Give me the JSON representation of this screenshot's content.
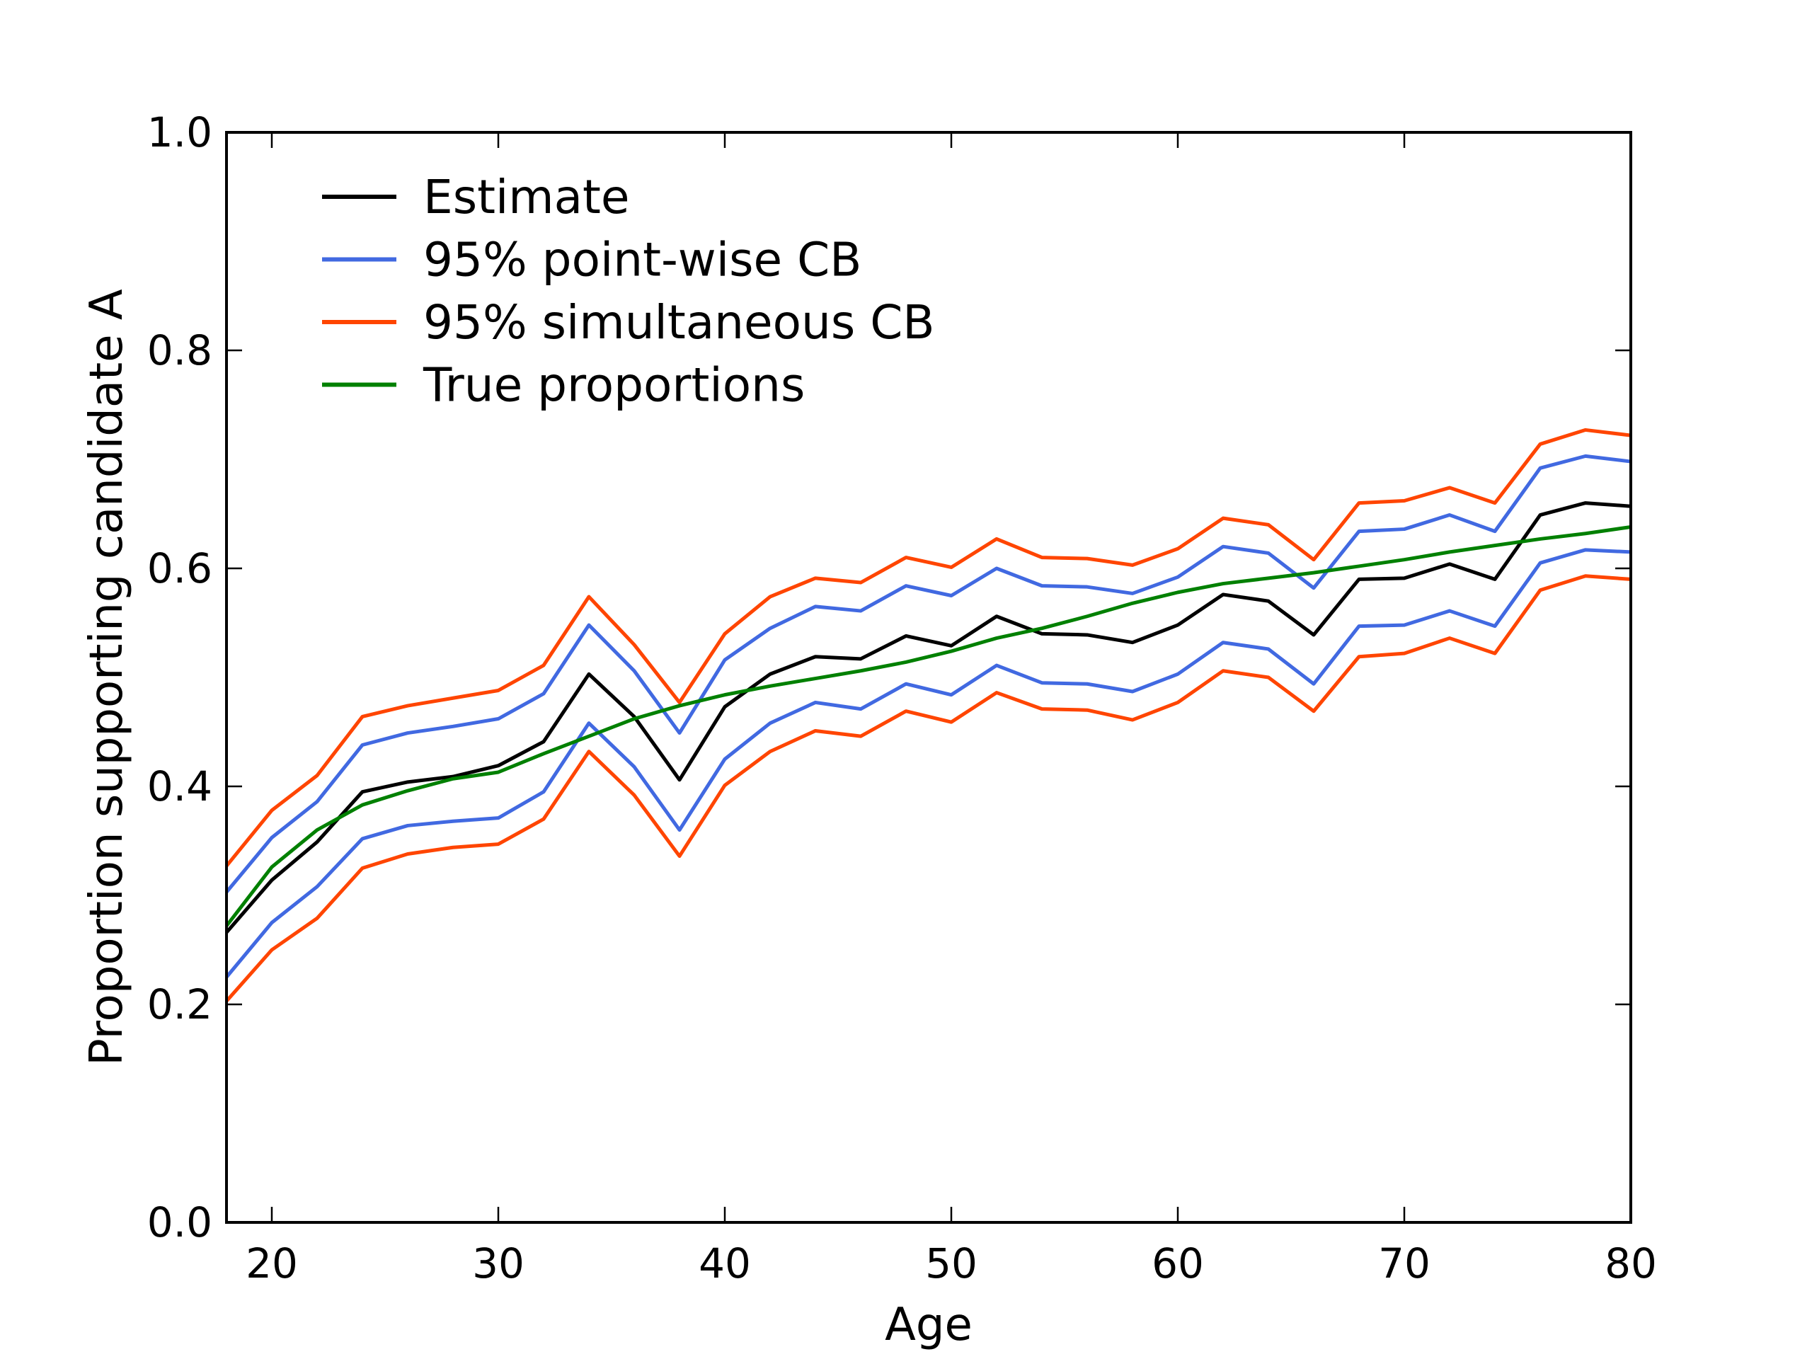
{
  "chart_data": {
    "type": "line",
    "title": "",
    "xlabel": "Age",
    "ylabel": "Proportion supporting candidate A",
    "xlim": [
      18,
      80
    ],
    "ylim": [
      0.0,
      1.0
    ],
    "grid": false,
    "legend_position": "upper left",
    "x": [
      18,
      20,
      22,
      24,
      26,
      28,
      30,
      32,
      34,
      36,
      38,
      40,
      42,
      44,
      46,
      48,
      50,
      52,
      54,
      56,
      58,
      60,
      62,
      64,
      66,
      68,
      70,
      72,
      74,
      76,
      78,
      80
    ],
    "series": [
      {
        "name": "Estimate",
        "color": "#000000",
        "values": [
          0.266,
          0.314,
          0.349,
          0.395,
          0.404,
          0.409,
          0.419,
          0.441,
          0.503,
          0.464,
          0.406,
          0.473,
          0.503,
          0.519,
          0.517,
          0.538,
          0.529,
          0.556,
          0.54,
          0.539,
          0.532,
          0.548,
          0.576,
          0.57,
          0.539,
          0.59,
          0.591,
          0.604,
          0.59,
          0.649,
          0.66,
          0.657
        ]
      },
      {
        "name": "95% point-wise CB upper",
        "color": "#4169E1",
        "values": [
          0.303,
          0.353,
          0.386,
          0.438,
          0.449,
          0.455,
          0.462,
          0.485,
          0.548,
          0.506,
          0.449,
          0.516,
          0.545,
          0.565,
          0.561,
          0.584,
          0.575,
          0.6,
          0.584,
          0.583,
          0.577,
          0.592,
          0.62,
          0.614,
          0.582,
          0.634,
          0.636,
          0.649,
          0.634,
          0.692,
          0.703,
          0.698
        ]
      },
      {
        "name": "95% point-wise CB lower",
        "color": "#4169E1",
        "values": [
          0.225,
          0.275,
          0.308,
          0.352,
          0.364,
          0.368,
          0.371,
          0.395,
          0.458,
          0.418,
          0.36,
          0.425,
          0.458,
          0.477,
          0.471,
          0.494,
          0.484,
          0.511,
          0.495,
          0.494,
          0.487,
          0.503,
          0.532,
          0.526,
          0.494,
          0.547,
          0.548,
          0.561,
          0.547,
          0.605,
          0.617,
          0.615
        ]
      },
      {
        "name": "95% simultaneous CB upper",
        "color": "#FF4500",
        "values": [
          0.327,
          0.378,
          0.41,
          0.464,
          0.474,
          0.481,
          0.488,
          0.511,
          0.574,
          0.53,
          0.477,
          0.54,
          0.574,
          0.591,
          0.587,
          0.61,
          0.601,
          0.627,
          0.61,
          0.609,
          0.603,
          0.618,
          0.646,
          0.64,
          0.608,
          0.66,
          0.662,
          0.674,
          0.66,
          0.714,
          0.727,
          0.722
        ]
      },
      {
        "name": "95% simultaneous CB lower",
        "color": "#FF4500",
        "values": [
          0.203,
          0.25,
          0.279,
          0.325,
          0.338,
          0.344,
          0.347,
          0.37,
          0.432,
          0.392,
          0.336,
          0.401,
          0.432,
          0.451,
          0.446,
          0.469,
          0.459,
          0.486,
          0.471,
          0.47,
          0.461,
          0.477,
          0.506,
          0.5,
          0.469,
          0.519,
          0.522,
          0.536,
          0.522,
          0.58,
          0.593,
          0.59
        ]
      },
      {
        "name": "True proportions",
        "color": "#008000",
        "values": [
          0.272,
          0.326,
          0.36,
          0.383,
          0.396,
          0.407,
          0.413,
          0.43,
          0.446,
          0.462,
          0.474,
          0.484,
          0.492,
          0.499,
          0.506,
          0.514,
          0.524,
          0.536,
          0.545,
          0.556,
          0.568,
          0.578,
          0.586,
          0.591,
          0.596,
          0.602,
          0.608,
          0.615,
          0.621,
          0.627,
          0.632,
          0.638
        ]
      }
    ],
    "xticks": [
      {
        "v": 20,
        "label": "20"
      },
      {
        "v": 30,
        "label": "30"
      },
      {
        "v": 40,
        "label": "40"
      },
      {
        "v": 50,
        "label": "50"
      },
      {
        "v": 60,
        "label": "60"
      },
      {
        "v": 70,
        "label": "70"
      },
      {
        "v": 80,
        "label": "80"
      }
    ],
    "yticks": [
      {
        "v": 0.0,
        "label": "0.0"
      },
      {
        "v": 0.2,
        "label": "0.2"
      },
      {
        "v": 0.4,
        "label": "0.4"
      },
      {
        "v": 0.6,
        "label": "0.6"
      },
      {
        "v": 0.8,
        "label": "0.8"
      },
      {
        "v": 1.0,
        "label": "1.0"
      }
    ],
    "legend": {
      "entries": [
        {
          "label": "Estimate",
          "color": "#000000"
        },
        {
          "label": "95% point-wise CB",
          "color": "#4169E1"
        },
        {
          "label": "95% simultaneous CB",
          "color": "#FF4500"
        },
        {
          "label": "True proportions",
          "color": "#008000"
        }
      ]
    }
  }
}
